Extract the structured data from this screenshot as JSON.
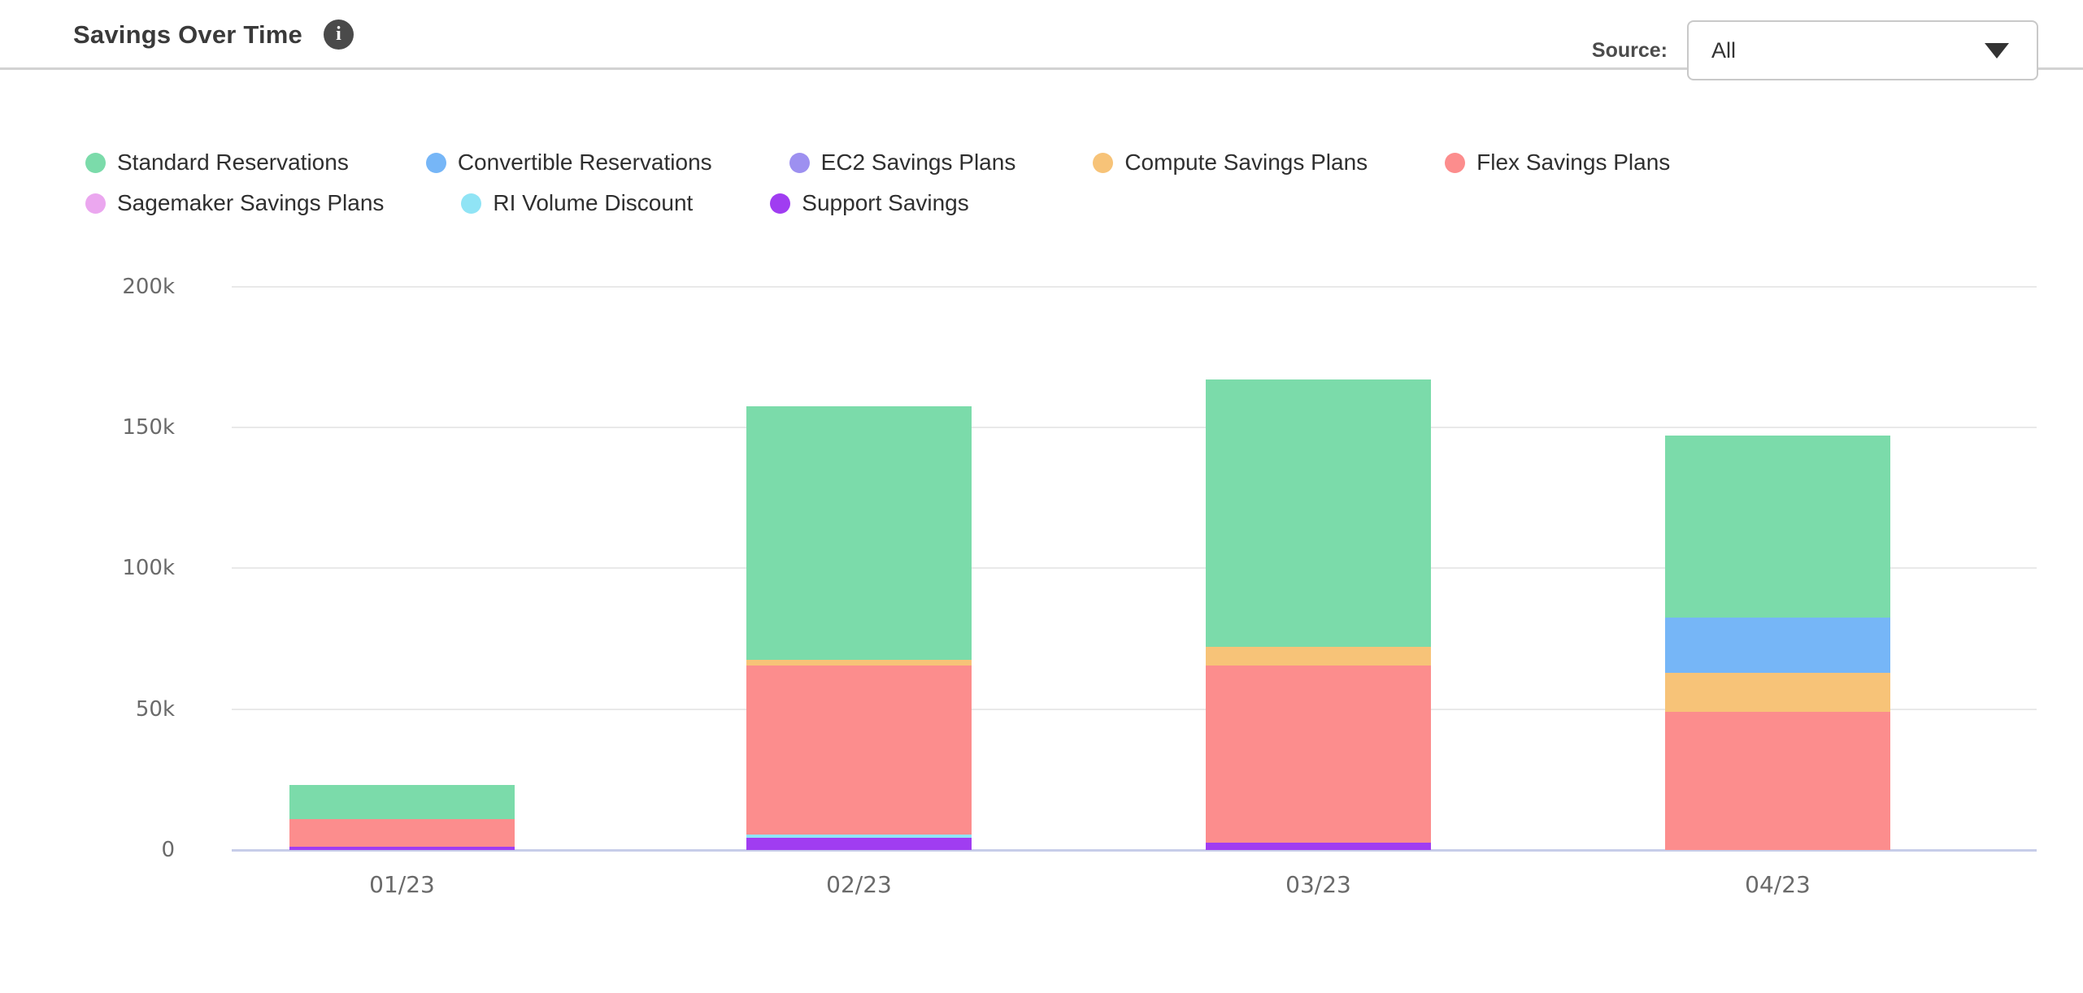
{
  "header": {
    "title": "Savings Over Time",
    "info_icon": "i",
    "source_label": "Source:",
    "source_value": "All"
  },
  "chart_data": {
    "type": "bar",
    "stacked": true,
    "title": "Savings Over Time",
    "categories": [
      "01/23",
      "02/23",
      "03/23",
      "04/23"
    ],
    "values_unit": "thousands",
    "ylim": [
      0,
      200
    ],
    "grid": true,
    "legend_position": "top",
    "y_ticks": [
      {
        "value": 0,
        "label": "0"
      },
      {
        "value": 50,
        "label": "50k"
      },
      {
        "value": 100,
        "label": "100k"
      },
      {
        "value": 150,
        "label": "150k"
      },
      {
        "value": 200,
        "label": "200k"
      }
    ],
    "series": [
      {
        "name": "Standard Reservations",
        "color": "#7bdbaa",
        "values": [
          12.3,
          89.9,
          94.9,
          64.5
        ]
      },
      {
        "name": "Convertible Reservations",
        "color": "#76b6f7",
        "values": [
          0,
          0,
          0,
          19.5
        ]
      },
      {
        "name": "EC2 Savings Plans",
        "color": "#9d90f0",
        "values": [
          0,
          0,
          0,
          0
        ]
      },
      {
        "name": "Compute Savings Plans",
        "color": "#f7c378",
        "values": [
          0,
          2.1,
          6.7,
          14
        ]
      },
      {
        "name": "Flex Savings Plans",
        "color": "#fc8d8d",
        "values": [
          9.7,
          60,
          62.7,
          49
        ]
      },
      {
        "name": "Sagemaker Savings Plans",
        "color": "#eba7ef",
        "values": [
          0,
          0,
          0,
          0
        ]
      },
      {
        "name": "RI Volume Discount",
        "color": "#90e4f5",
        "values": [
          0,
          1.2,
          0,
          0
        ]
      },
      {
        "name": "Support Savings",
        "color": "#a03df1",
        "values": [
          1.2,
          4.2,
          2.7,
          0
        ]
      }
    ],
    "stack_order_bottom_to_top": [
      "Support Savings",
      "RI Volume Discount",
      "Sagemaker Savings Plans",
      "Flex Savings Plans",
      "Compute Savings Plans",
      "EC2 Savings Plans",
      "Convertible Reservations",
      "Standard Reservations"
    ]
  },
  "colors": {
    "axis_line": "#c7cde9",
    "gridline": "#e9e9e9",
    "tick_text": "#6a6a6a",
    "legend_text": "#2f2f2f",
    "title_text": "#3a3a3a"
  }
}
